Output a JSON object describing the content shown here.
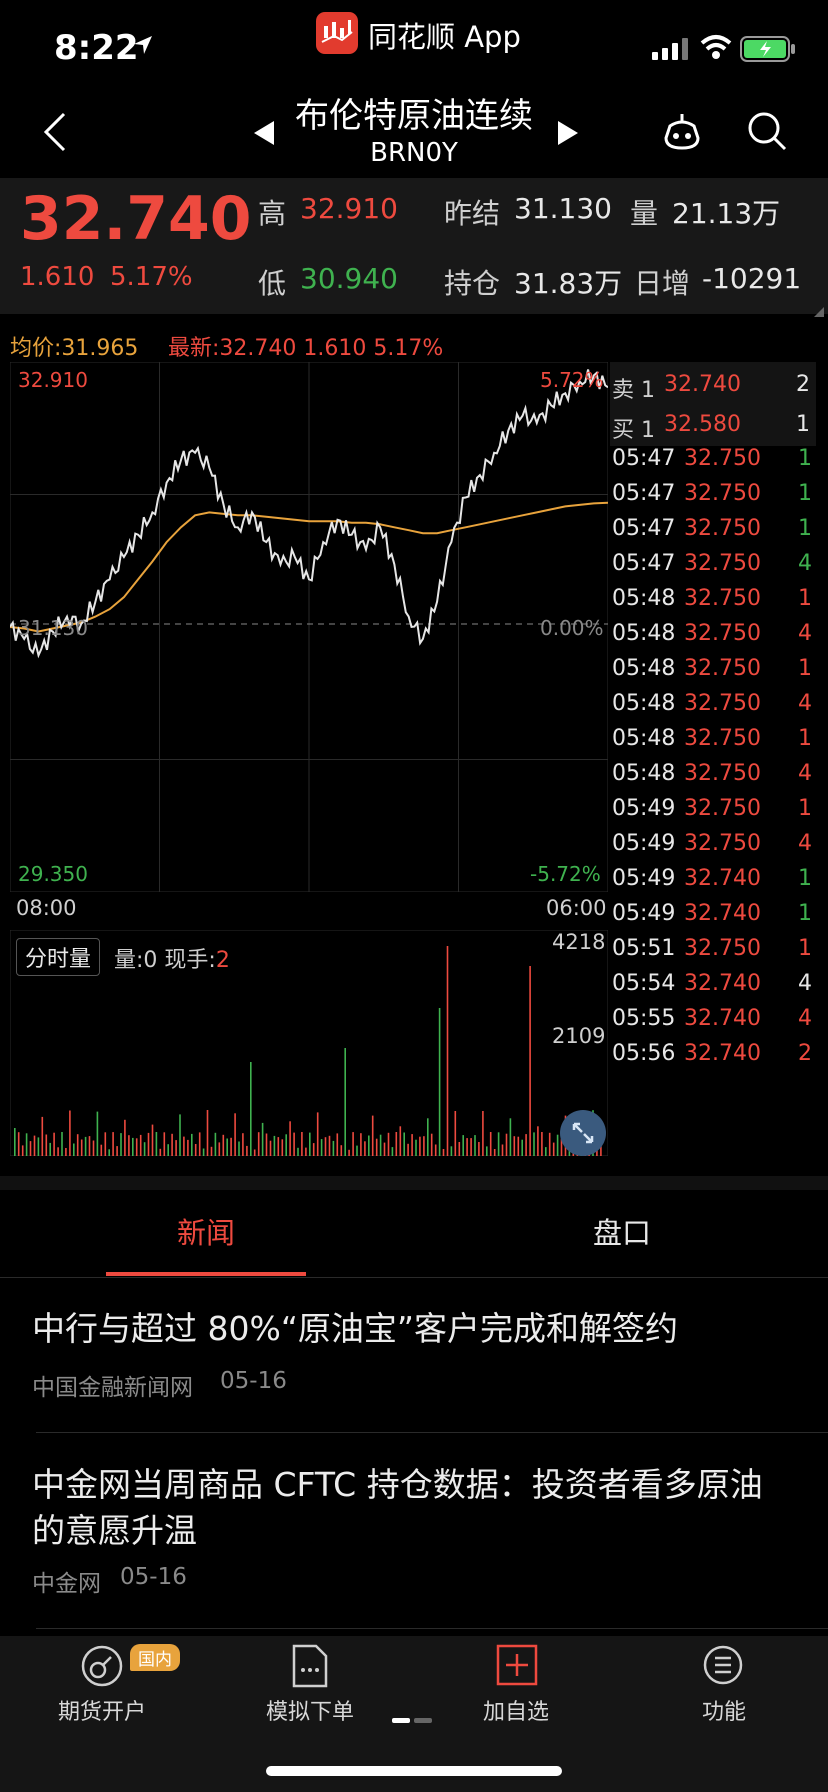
{
  "status": {
    "time": "8:22",
    "app_name": "同花顺 App"
  },
  "nav": {
    "title": "布伦特原油连续",
    "code": "BRN0Y"
  },
  "quote": {
    "last": "32.740",
    "change": "1.610",
    "change_pct": "5.17%",
    "high_label": "高",
    "high": "32.910",
    "low_label": "低",
    "low": "30.940",
    "prev_settle_label": "昨结",
    "prev_settle": "31.130",
    "volume_label": "量",
    "volume": "21.13万",
    "open_interest_label": "持仓",
    "open_interest": "31.83万",
    "daily_inc_label": "日增",
    "daily_inc": "-10291"
  },
  "chart": {
    "avg_label": "均价:31.965",
    "latest_label": "最新:32.740  1.610  5.17%",
    "top_price": "32.910",
    "top_pct": "5.72%",
    "mid_price": "31.130",
    "mid_pct": "0.00%",
    "bottom_price": "29.350",
    "bottom_pct": "-5.72%",
    "time_start": "08:00",
    "time_end": "06:00",
    "vol_tab": "分时量",
    "vol_info_prefix": "量:0 现手:",
    "vol_info_hand": "2",
    "vol_max": "4218",
    "vol_mid": "2109",
    "colors": {
      "up": "#ee4a3f",
      "down": "#3fb24f",
      "avg": "#e8a33c",
      "price": "#e6e6e6"
    }
  },
  "chart_data": {
    "type": "line",
    "x_range": [
      "08:00",
      "06:00"
    ],
    "ylim": [
      29.35,
      32.91
    ],
    "reference": 31.13,
    "series": [
      {
        "name": "最新",
        "values": [
          31.13,
          31.05,
          30.94,
          31.1,
          31.2,
          31.15,
          31.3,
          31.45,
          31.6,
          31.75,
          31.9,
          32.1,
          32.25,
          32.3,
          32.2,
          31.95,
          31.8,
          31.9,
          31.7,
          31.55,
          31.6,
          31.45,
          31.7,
          31.85,
          31.75,
          31.65,
          31.8,
          31.55,
          31.2,
          31.05,
          31.3,
          31.7,
          32.0,
          32.15,
          32.3,
          32.45,
          32.55,
          32.5,
          32.62,
          32.7,
          32.78,
          32.82,
          32.74
        ]
      },
      {
        "name": "均价",
        "values": [
          31.13,
          31.12,
          31.1,
          31.12,
          31.14,
          31.16,
          31.2,
          31.25,
          31.33,
          31.45,
          31.57,
          31.7,
          31.8,
          31.88,
          31.9,
          31.89,
          31.88,
          31.88,
          31.87,
          31.86,
          31.85,
          31.84,
          31.84,
          31.84,
          31.83,
          31.83,
          31.82,
          31.8,
          31.78,
          31.76,
          31.76,
          31.78,
          31.8,
          31.82,
          31.84,
          31.86,
          31.88,
          31.9,
          31.92,
          31.94,
          31.95,
          31.96,
          31.965
        ]
      }
    ]
  },
  "order_book": {
    "sell_label": "卖 1",
    "sell_price": "32.740",
    "sell_vol": "2",
    "buy_label": "买 1",
    "buy_price": "32.580",
    "buy_vol": "1"
  },
  "trades": [
    {
      "time": "05:47",
      "price": "32.750",
      "vol": "1",
      "side": "down"
    },
    {
      "time": "05:47",
      "price": "32.750",
      "vol": "1",
      "side": "down"
    },
    {
      "time": "05:47",
      "price": "32.750",
      "vol": "1",
      "side": "down"
    },
    {
      "time": "05:47",
      "price": "32.750",
      "vol": "4",
      "side": "down"
    },
    {
      "time": "05:48",
      "price": "32.750",
      "vol": "1",
      "side": "up"
    },
    {
      "time": "05:48",
      "price": "32.750",
      "vol": "4",
      "side": "up"
    },
    {
      "time": "05:48",
      "price": "32.750",
      "vol": "1",
      "side": "up"
    },
    {
      "time": "05:48",
      "price": "32.750",
      "vol": "4",
      "side": "up"
    },
    {
      "time": "05:48",
      "price": "32.750",
      "vol": "1",
      "side": "up"
    },
    {
      "time": "05:48",
      "price": "32.750",
      "vol": "4",
      "side": "up"
    },
    {
      "time": "05:49",
      "price": "32.750",
      "vol": "1",
      "side": "up"
    },
    {
      "time": "05:49",
      "price": "32.750",
      "vol": "4",
      "side": "up"
    },
    {
      "time": "05:49",
      "price": "32.740",
      "vol": "1",
      "side": "down"
    },
    {
      "time": "05:49",
      "price": "32.740",
      "vol": "1",
      "side": "down"
    },
    {
      "time": "05:51",
      "price": "32.750",
      "vol": "1",
      "side": "up"
    },
    {
      "time": "05:54",
      "price": "32.740",
      "vol": "4",
      "side": "flat"
    },
    {
      "time": "05:55",
      "price": "32.740",
      "vol": "4",
      "side": "up"
    },
    {
      "time": "05:56",
      "price": "32.740",
      "vol": "2",
      "side": "up"
    }
  ],
  "tabs": {
    "news": "新闻",
    "book": "盘口"
  },
  "news": [
    {
      "title": "中行与超过 80%“原油宝”客户完成和解签约",
      "source": "中国金融新闻网",
      "date": "05-16"
    },
    {
      "title": "中金网当周商品 CFTC 持仓数据：投资者看多原油的意愿升温",
      "source": "中金网",
      "date": "05-16"
    }
  ],
  "bottom_bar": {
    "account_badge": "国内",
    "account_label": "期货开户",
    "sim_label": "模拟下单",
    "add_label": "加自选",
    "func_label": "功能"
  }
}
